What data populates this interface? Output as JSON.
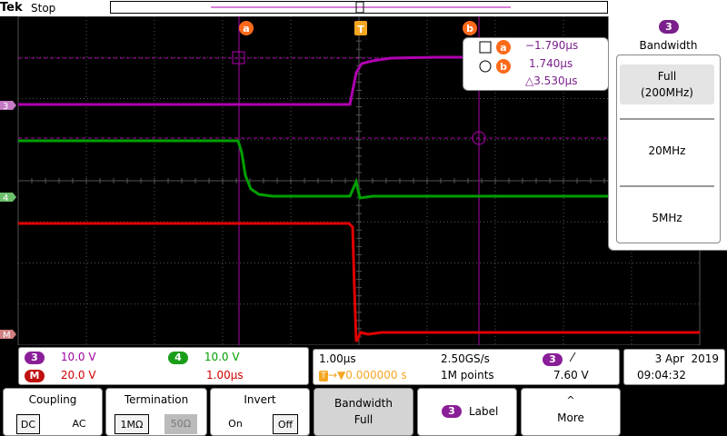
{
  "header": {
    "brand": "Tek",
    "run_state": "Stop"
  },
  "markers": {
    "cursor_a": "a",
    "cursor_b": "b",
    "trigger": "T"
  },
  "cursor_readout": {
    "a_value": "−1.790µs",
    "b_value": "1.740µs",
    "delta": "△3.530µs"
  },
  "channels": [
    {
      "id": "3",
      "color": "#b000b0"
    },
    {
      "id": "4",
      "color": "#00a000"
    },
    {
      "id": "M",
      "color": "#e00000"
    }
  ],
  "bandwidth_menu": {
    "channel": "3",
    "title": "Bandwidth",
    "options": [
      {
        "line1": "Full",
        "line2": "(200MHz)",
        "selected": true
      },
      {
        "line1": "20MHz",
        "line2": "",
        "selected": false
      },
      {
        "line1": "5MHz",
        "line2": "",
        "selected": false
      }
    ]
  },
  "vertical": {
    "ch3": {
      "badge": "3",
      "scale": "10.0 V"
    },
    "ch4": {
      "badge": "4",
      "scale": "10.0 V"
    },
    "math": {
      "badge": "M",
      "scale": "20.0 V",
      "time": "1.00µs"
    }
  },
  "horizontal": {
    "time_per_div": "1.00µs",
    "sample_rate": "2.50GS/s",
    "trigger_pos": "0.000000 s",
    "record_length": "1M points",
    "trigger_channel": "3",
    "trigger_slope": "⁄",
    "trigger_level": "7.60 V"
  },
  "datetime": {
    "date": "3 Apr  2019",
    "time": "09:04:32"
  },
  "bottom_menu": {
    "coupling": {
      "label": "Coupling",
      "opt1": "DC",
      "opt2": "AC"
    },
    "termination": {
      "label": "Termination",
      "opt1": "1MΩ",
      "opt2": "50Ω"
    },
    "invert": {
      "label": "Invert",
      "opt1": "On",
      "opt2": "Off"
    },
    "bandwidth": {
      "label": "Bandwidth",
      "value": "Full"
    },
    "label_btn": {
      "badge": "3",
      "text": "Label"
    },
    "more": {
      "text": "More",
      "arrow": "^"
    }
  }
}
